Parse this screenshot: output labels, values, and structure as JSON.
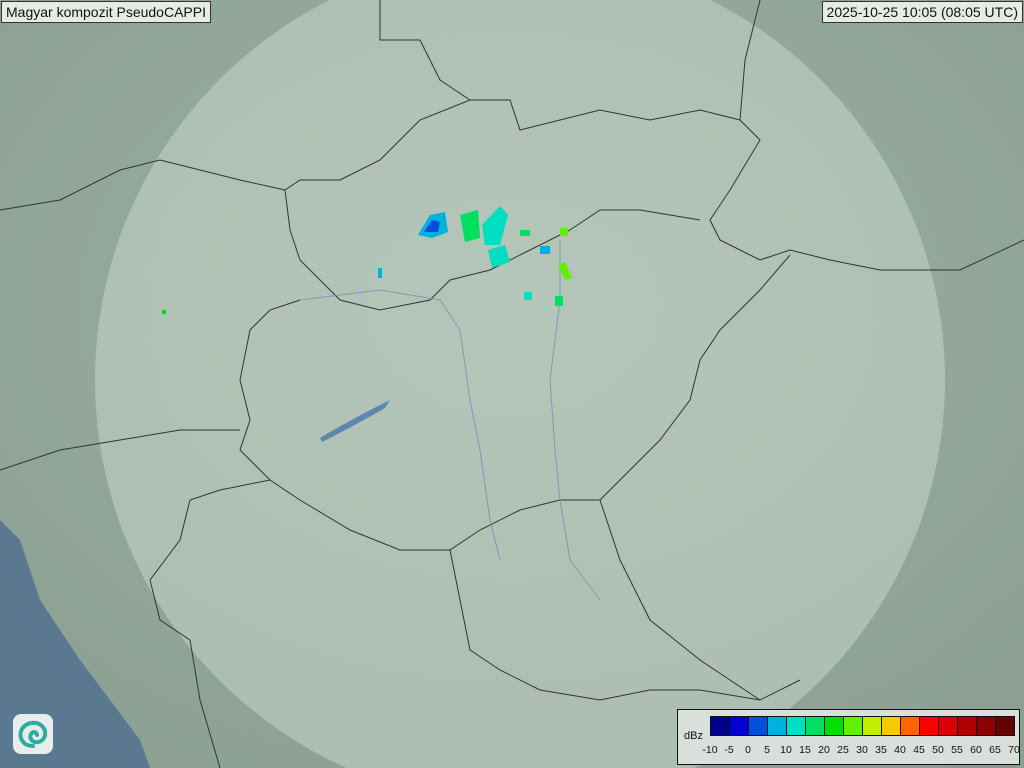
{
  "header": {
    "title": "Magyar kompozit  PseudoCAPPI",
    "timestamp": "2025-10-25 10:05 (08:05 UTC)"
  },
  "legend": {
    "unit": "dBz",
    "ticks": [
      "-10",
      "-5",
      "0",
      "5",
      "10",
      "15",
      "20",
      "25",
      "30",
      "35",
      "40",
      "45",
      "50",
      "55",
      "60",
      "65",
      "70"
    ],
    "colors": [
      "#00008c",
      "#0000d0",
      "#0050d8",
      "#00b0e0",
      "#00e0c0",
      "#00e060",
      "#00e000",
      "#60f000",
      "#c0f000",
      "#f8c800",
      "#ff6400",
      "#ff0000",
      "#d80000",
      "#b00000",
      "#8c0000",
      "#640000"
    ]
  },
  "map": {
    "background": "#8fa597",
    "radar_coverage": "#c8d6cc",
    "sea": "#5a7890",
    "logo_icon": "swirl-logo-icon"
  }
}
